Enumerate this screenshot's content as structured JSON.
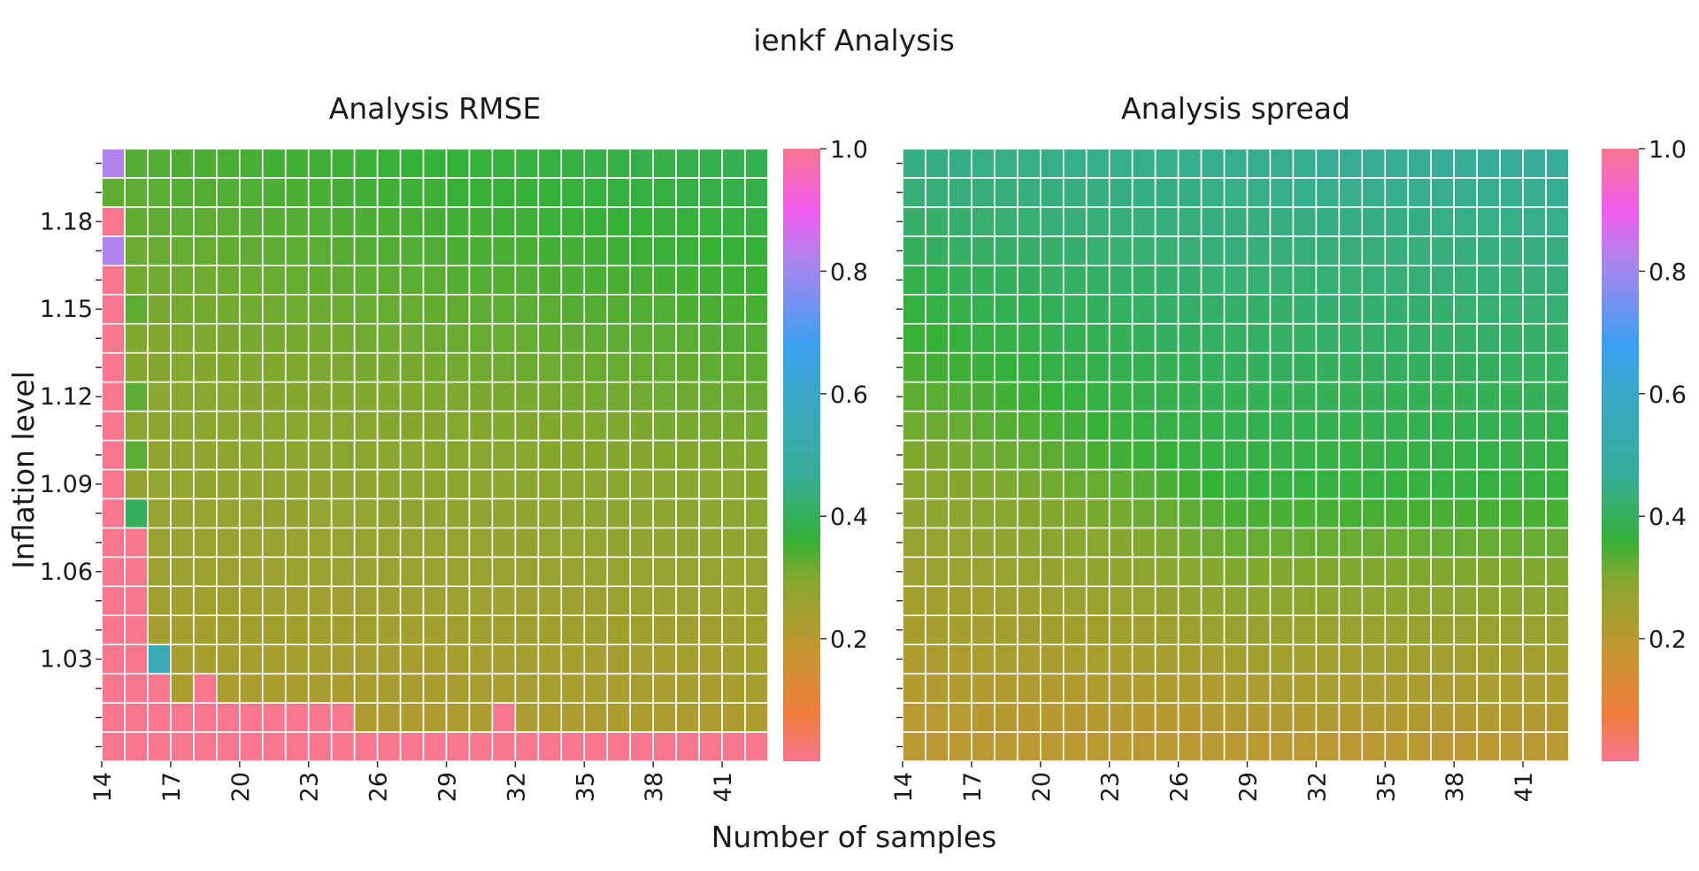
{
  "chart_data": {
    "type": "heatmap",
    "suptitle": "ienkf Analysis",
    "xlabel": "Number of samples",
    "ylabel": "Inflation level",
    "x": [
      14,
      15,
      16,
      17,
      18,
      19,
      20,
      21,
      22,
      23,
      24,
      25,
      26,
      27,
      28,
      29,
      30,
      31,
      32,
      33,
      34,
      35,
      36,
      37,
      38,
      39,
      40,
      41,
      42
    ],
    "y": [
      1.0,
      1.01,
      1.02,
      1.03,
      1.04,
      1.05,
      1.06,
      1.07,
      1.08,
      1.09,
      1.1,
      1.11,
      1.12,
      1.13,
      1.14,
      1.15,
      1.16,
      1.17,
      1.18,
      1.19,
      1.2
    ],
    "x_tick_labels": [
      "14",
      "17",
      "20",
      "23",
      "26",
      "29",
      "32",
      "35",
      "38",
      "41"
    ],
    "y_tick_labels": [
      "1.0",
      "1.03",
      "1.06",
      "1.09",
      "1.12",
      "1.15",
      "1.18"
    ],
    "colorbar_ticks": [
      "0.2",
      "0.4",
      "0.6",
      "0.8",
      "1.0"
    ],
    "colorbar_range": [
      0,
      1.0
    ],
    "colormap_stops": [
      {
        "v": 0.0,
        "c": "#f8768e"
      },
      {
        "v": 0.08,
        "c": "#ef7d3a"
      },
      {
        "v": 0.18,
        "c": "#c59630"
      },
      {
        "v": 0.3,
        "c": "#83a82f"
      },
      {
        "v": 0.36,
        "c": "#35b136"
      },
      {
        "v": 0.47,
        "c": "#36ad9a"
      },
      {
        "v": 0.6,
        "c": "#39a8c7"
      },
      {
        "v": 0.68,
        "c": "#3aa0f2"
      },
      {
        "v": 0.82,
        "c": "#b083ee"
      },
      {
        "v": 0.9,
        "c": "#f25cf0"
      },
      {
        "v": 1.0,
        "c": "#f8768e"
      }
    ],
    "panels": [
      {
        "title": "Analysis RMSE",
        "value_model": {
          "base": 0.215,
          "gain_rows": 0.12,
          "gain_cols": 0.055,
          "row_divisor": 20,
          "col_divisor": 28
        },
        "overrides": [
          {
            "ix": 0,
            "iy_from": 0,
            "iy_to": 18,
            "value": 1.0
          },
          {
            "ix": 0,
            "iy": 20,
            "value": 0.82
          },
          {
            "ix": 0,
            "iy": 17,
            "value": 0.82
          },
          {
            "ix": 1,
            "iy_from": 0,
            "iy_to": 7,
            "value": 1.0
          },
          {
            "ix": 1,
            "iy": 8,
            "value": 0.4
          },
          {
            "ix": 1,
            "iy": 10,
            "value": 0.33
          },
          {
            "ix": 1,
            "iy": 12,
            "value": 0.33
          },
          {
            "ix": 1,
            "iy": 15,
            "value": 0.33
          },
          {
            "ix": 2,
            "iy_from": 0,
            "iy_to": 2,
            "value": 1.0
          },
          {
            "ix": 2,
            "iy": 3,
            "value": 0.55
          },
          {
            "ix_from": 3,
            "ix_to": 10,
            "iy": 1,
            "value": 1.0
          },
          {
            "ix": 4,
            "iy": 2,
            "value": 1.0
          },
          {
            "ix": 17,
            "iy": 1,
            "value": 1.0
          },
          {
            "ix_from": 0,
            "ix_to": 28,
            "iy": 0,
            "value": 1.0
          }
        ]
      },
      {
        "title": "Analysis spread",
        "value_model": {
          "mode": "spread",
          "low": 0.2,
          "mid": 0.37,
          "high": 0.47,
          "ridge_row_start": 15,
          "ridge_row_end": 9
        }
      }
    ]
  }
}
